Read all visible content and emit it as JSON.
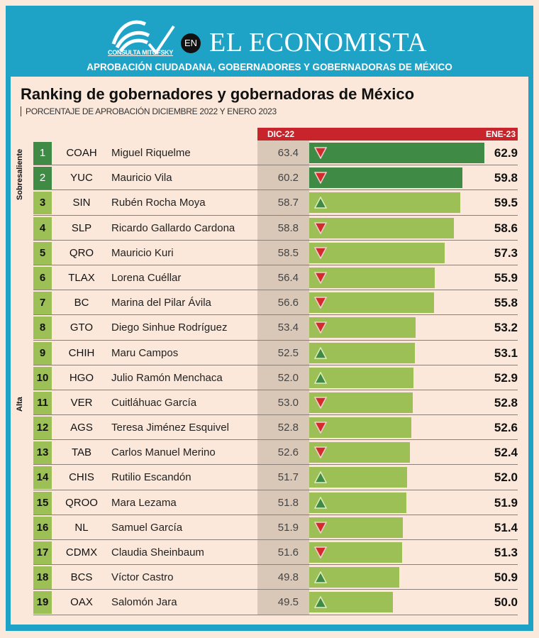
{
  "header": {
    "logo_text": "CONSULTA MITOFSKY",
    "en_badge": "EN",
    "brand": "EL ECONOMISTA",
    "banner": "APROBACIÓN CIUDADANA, GOBERNADORES Y GOBERNADORAS DE MÉXICO"
  },
  "colors": {
    "frame": "#1ea3c7",
    "header_red": "#c8242b",
    "dark_green": "#3f8a45",
    "light_green": "#9cc055",
    "down": "#d32b2b",
    "up": "#3f8a45"
  },
  "chart_data": {
    "type": "bar",
    "title": "Ranking de gobernadores y gobernadoras de México",
    "subtitle": "PORCENTAJE DE APROBACIÓN DICIEMBRE 2022 Y ENERO 2023",
    "columns": {
      "prev": "DIC-22",
      "curr": "ENE-23"
    },
    "groups": [
      {
        "label": "Sobresaliente",
        "ranks": [
          1,
          2
        ]
      },
      {
        "label": "Alta",
        "ranks": [
          3,
          19
        ]
      }
    ],
    "rows": [
      {
        "rank": "1",
        "state": "COAH",
        "name": "Miguel Riquelme",
        "dic": "63.4",
        "ene": "62.9",
        "trend": "down"
      },
      {
        "rank": "2",
        "state": "YUC",
        "name": "Mauricio Vila",
        "dic": "60.2",
        "ene": "59.8",
        "trend": "down"
      },
      {
        "rank": "3",
        "state": "SIN",
        "name": "Rubén Rocha Moya",
        "dic": "58.7",
        "ene": "59.5",
        "trend": "up"
      },
      {
        "rank": "4",
        "state": "SLP",
        "name": "Ricardo Gallardo Cardona",
        "dic": "58.8",
        "ene": "58.6",
        "trend": "down"
      },
      {
        "rank": "5",
        "state": "QRO",
        "name": "Mauricio Kuri",
        "dic": "58.5",
        "ene": "57.3",
        "trend": "down"
      },
      {
        "rank": "6",
        "state": "TLAX",
        "name": "Lorena Cuéllar",
        "dic": "56.4",
        "ene": "55.9",
        "trend": "down"
      },
      {
        "rank": "7",
        "state": "BC",
        "name": "Marina del Pilar Ávila",
        "dic": "56.6",
        "ene": "55.8",
        "trend": "down"
      },
      {
        "rank": "8",
        "state": "GTO",
        "name": "Diego Sinhue Rodríguez",
        "dic": "53.4",
        "ene": "53.2",
        "trend": "down"
      },
      {
        "rank": "9",
        "state": "CHIH",
        "name": "Maru Campos",
        "dic": "52.5",
        "ene": "53.1",
        "trend": "up"
      },
      {
        "rank": "10",
        "state": "HGO",
        "name": "Julio Ramón Menchaca",
        "dic": "52.0",
        "ene": "52.9",
        "trend": "up"
      },
      {
        "rank": "11",
        "state": "VER",
        "name": "Cuitláhuac García",
        "dic": "53.0",
        "ene": "52.8",
        "trend": "down"
      },
      {
        "rank": "12",
        "state": "AGS",
        "name": "Teresa Jiménez Esquivel",
        "dic": "52.8",
        "ene": "52.6",
        "trend": "down"
      },
      {
        "rank": "13",
        "state": "TAB",
        "name": "Carlos Manuel Merino",
        "dic": "52.6",
        "ene": "52.4",
        "trend": "down"
      },
      {
        "rank": "14",
        "state": "CHIS",
        "name": "Rutilio Escandón",
        "dic": "51.7",
        "ene": "52.0",
        "trend": "up"
      },
      {
        "rank": "15",
        "state": "QROO",
        "name": "Mara Lezama",
        "dic": "51.8",
        "ene": "51.9",
        "trend": "up"
      },
      {
        "rank": "16",
        "state": "NL",
        "name": "Samuel García",
        "dic": "51.9",
        "ene": "51.4",
        "trend": "down"
      },
      {
        "rank": "17",
        "state": "CDMX",
        "name": "Claudia Sheinbaum",
        "dic": "51.6",
        "ene": "51.3",
        "trend": "down"
      },
      {
        "rank": "18",
        "state": "BCS",
        "name": "Víctor Castro",
        "dic": "49.8",
        "ene": "50.9",
        "trend": "up"
      },
      {
        "rank": "19",
        "state": "OAX",
        "name": "Salomón Jara",
        "dic": "49.5",
        "ene": "50.0",
        "trend": "up"
      }
    ]
  }
}
